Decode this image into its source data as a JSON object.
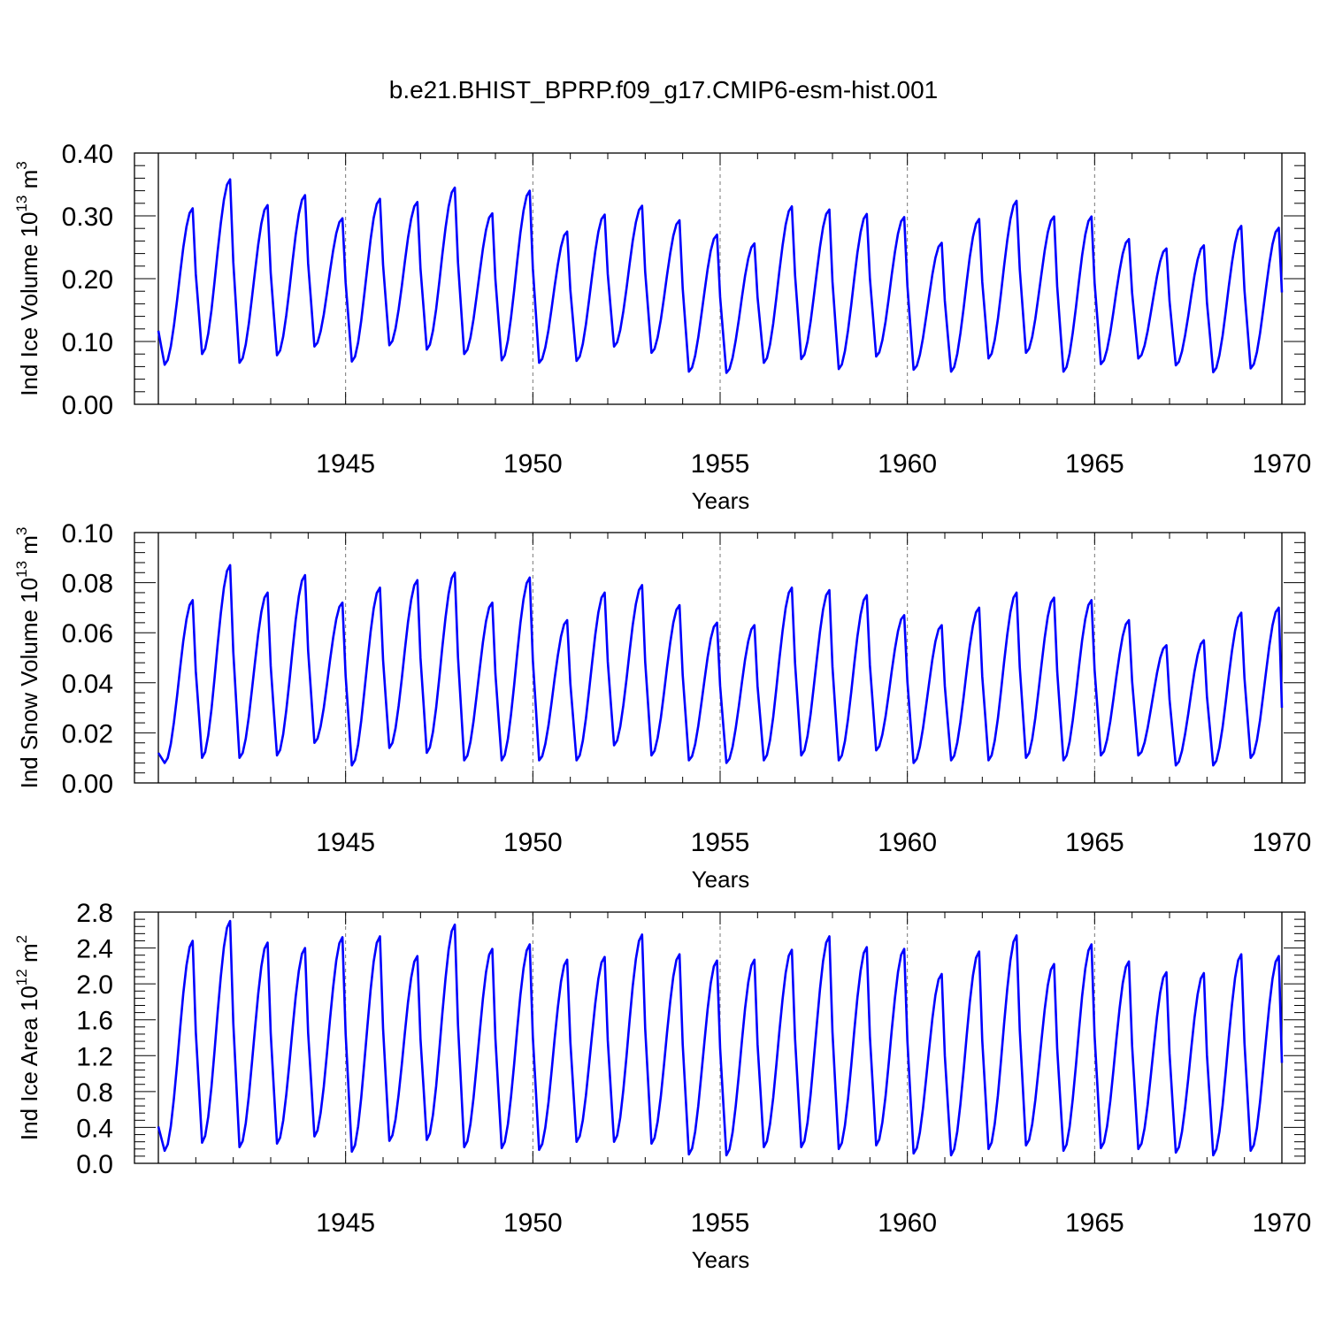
{
  "title": "b.e21.BHIST_BPRP.f09_g17.CMIP6-esm-hist.001",
  "chart_data": [
    {
      "type": "line",
      "ylabel": "Ind Ice Volume 10",
      "ylabel_exp": "13",
      "ylabel_unit": " m",
      "ylabel_unit_exp": "3",
      "xlabel": "Years",
      "xlim": [
        1940.0,
        1970.0
      ],
      "ylim": [
        0.0,
        0.4
      ],
      "yticks": [
        0.0,
        0.1,
        0.2,
        0.3,
        0.4
      ],
      "ytick_labels": [
        "0.00",
        "0.10",
        "0.20",
        "0.30",
        "0.40"
      ],
      "xticks": [
        1945,
        1950,
        1955,
        1960,
        1965,
        1970
      ],
      "xtick_labels": [
        "1945",
        "1950",
        "1955",
        "1960",
        "1965",
        "1970"
      ],
      "color": "#0000ff",
      "cycle": {
        "max_month_offset": 11,
        "min_month_offset": 2
      },
      "annual_max": [
        0.312,
        0.358,
        0.317,
        0.333,
        0.296,
        0.327,
        0.322,
        0.345,
        0.304,
        0.34,
        0.275,
        0.302,
        0.316,
        0.293,
        0.27,
        0.256,
        0.315,
        0.31,
        0.303,
        0.298,
        0.257,
        0.295,
        0.324,
        0.299,
        0.299,
        0.263,
        0.248,
        0.253,
        0.284,
        0.281
      ],
      "annual_min": [
        0.063,
        0.08,
        0.066,
        0.078,
        0.092,
        0.068,
        0.094,
        0.087,
        0.08,
        0.07,
        0.066,
        0.069,
        0.092,
        0.082,
        0.052,
        0.05,
        0.066,
        0.072,
        0.056,
        0.076,
        0.055,
        0.052,
        0.073,
        0.082,
        0.052,
        0.064,
        0.073,
        0.062,
        0.051,
        0.057
      ],
      "start_value": 0.117,
      "end_value": 0.178
    },
    {
      "type": "line",
      "ylabel": "Ind Snow Volume 10",
      "ylabel_exp": "13",
      "ylabel_unit": " m",
      "ylabel_unit_exp": "3",
      "xlabel": "Years",
      "xlim": [
        1940.0,
        1970.0
      ],
      "ylim": [
        0.0,
        0.1
      ],
      "yticks": [
        0.0,
        0.02,
        0.04,
        0.06,
        0.08,
        0.1
      ],
      "ytick_labels": [
        "0.00",
        "0.02",
        "0.04",
        "0.06",
        "0.08",
        "0.10"
      ],
      "xticks": [
        1945,
        1950,
        1955,
        1960,
        1965,
        1970
      ],
      "xtick_labels": [
        "1945",
        "1950",
        "1955",
        "1960",
        "1965",
        "1970"
      ],
      "color": "#0000ff",
      "cycle": {
        "max_month_offset": 11,
        "min_month_offset": 2
      },
      "annual_max": [
        0.073,
        0.087,
        0.076,
        0.083,
        0.072,
        0.078,
        0.081,
        0.084,
        0.072,
        0.082,
        0.065,
        0.076,
        0.079,
        0.071,
        0.064,
        0.063,
        0.078,
        0.077,
        0.075,
        0.067,
        0.063,
        0.07,
        0.076,
        0.074,
        0.073,
        0.065,
        0.055,
        0.057,
        0.068,
        0.07
      ],
      "annual_min": [
        0.008,
        0.01,
        0.01,
        0.011,
        0.016,
        0.007,
        0.014,
        0.012,
        0.009,
        0.009,
        0.009,
        0.009,
        0.015,
        0.011,
        0.009,
        0.008,
        0.009,
        0.011,
        0.009,
        0.013,
        0.008,
        0.009,
        0.009,
        0.01,
        0.009,
        0.011,
        0.011,
        0.007,
        0.007,
        0.01
      ],
      "start_value": 0.012,
      "end_value": 0.03
    },
    {
      "type": "line",
      "ylabel": "Ind Ice Area 10",
      "ylabel_exp": "12",
      "ylabel_unit": " m",
      "ylabel_unit_exp": "2",
      "xlabel": "Years",
      "xlim": [
        1940.0,
        1970.0
      ],
      "ylim": [
        0.0,
        2.8
      ],
      "yticks": [
        0.0,
        0.4,
        0.8,
        1.2,
        1.6,
        2.0,
        2.4,
        2.8
      ],
      "ytick_labels": [
        "0.0",
        "0.4",
        "0.8",
        "1.2",
        "1.6",
        "2.0",
        "2.4",
        "2.8"
      ],
      "xticks": [
        1945,
        1950,
        1955,
        1960,
        1965,
        1970
      ],
      "xtick_labels": [
        "1945",
        "1950",
        "1955",
        "1960",
        "1965",
        "1970"
      ],
      "color": "#0000ff",
      "cycle": {
        "max_month_offset": 11,
        "min_month_offset": 2
      },
      "annual_max": [
        2.48,
        2.7,
        2.46,
        2.4,
        2.52,
        2.53,
        2.31,
        2.66,
        2.39,
        2.44,
        2.27,
        2.3,
        2.55,
        2.33,
        2.26,
        2.27,
        2.38,
        2.53,
        2.41,
        2.39,
        2.11,
        2.36,
        2.54,
        2.22,
        2.44,
        2.25,
        2.13,
        2.12,
        2.33,
        2.31
      ],
      "annual_min": [
        0.14,
        0.23,
        0.18,
        0.22,
        0.3,
        0.13,
        0.25,
        0.26,
        0.18,
        0.17,
        0.15,
        0.24,
        0.24,
        0.22,
        0.1,
        0.09,
        0.18,
        0.18,
        0.16,
        0.2,
        0.11,
        0.09,
        0.16,
        0.2,
        0.14,
        0.17,
        0.16,
        0.12,
        0.09,
        0.14
      ],
      "start_value": 0.41,
      "end_value": 1.12
    }
  ]
}
